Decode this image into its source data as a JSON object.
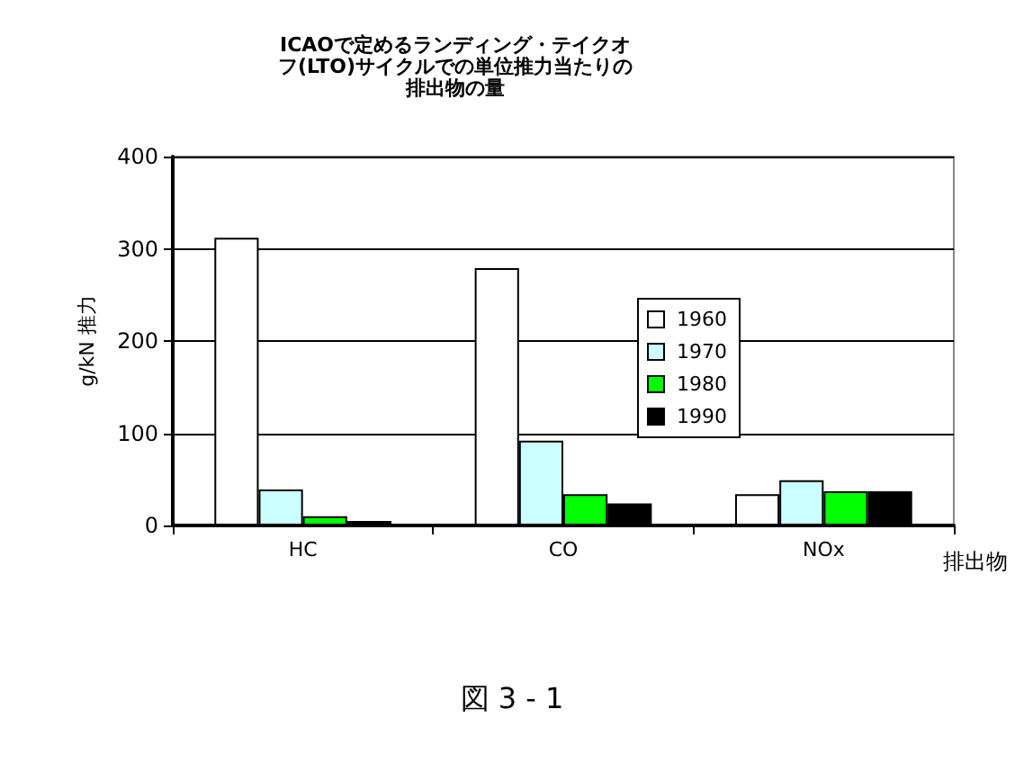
{
  "chart_data": {
    "type": "bar",
    "title": "ICAOで定めるランディング・テイクオフ(LTO)サイクルでの単位推力当たりの排出物の量",
    "xlabel": "排出物",
    "ylabel": "g/kN 推力",
    "annotations": [
      "図 3 - 1"
    ],
    "categories": [
      "HC",
      "CO",
      "NOx"
    ],
    "series": [
      {
        "name": "1960",
        "color": "#ffffff",
        "values": [
          312,
          279,
          34
        ]
      },
      {
        "name": "1970",
        "color": "#ccffff",
        "values": [
          39,
          92,
          49
        ]
      },
      {
        "name": "1980",
        "color": "#00ff00",
        "values": [
          10,
          34,
          37
        ]
      },
      {
        "name": "1990",
        "color": "#000000",
        "values": [
          5,
          24,
          37
        ]
      }
    ],
    "ylim": [
      0,
      400
    ],
    "yticks": [
      0,
      100,
      200,
      300,
      400
    ],
    "grid": "y",
    "legend": "right"
  }
}
